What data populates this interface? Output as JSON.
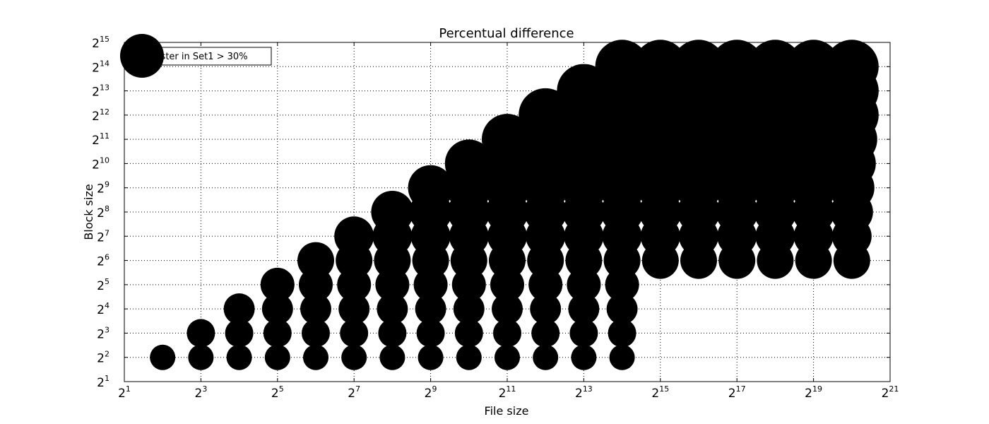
{
  "chart_data": {
    "type": "scatter",
    "title": "Percentual difference",
    "xlabel": "File size",
    "ylabel": "Block size",
    "xscale": "log2",
    "yscale": "log2",
    "xlim_exp": [
      1,
      21
    ],
    "ylim_exp": [
      1,
      15
    ],
    "xtick_exps": [
      1,
      3,
      5,
      7,
      9,
      11,
      13,
      15,
      17,
      19,
      21
    ],
    "ytick_exps": [
      1,
      2,
      3,
      4,
      5,
      6,
      7,
      8,
      9,
      10,
      11,
      12,
      13,
      14,
      15
    ],
    "tick_base": "2",
    "grid": true,
    "legend_position": "top-left",
    "series": [
      {
        "name": "faster in Set1  > 30%",
        "color": "#000000",
        "points_exp": [
          [
            2,
            2
          ],
          [
            3,
            2
          ],
          [
            3,
            3
          ],
          [
            4,
            2
          ],
          [
            4,
            3
          ],
          [
            4,
            4
          ],
          [
            5,
            2
          ],
          [
            5,
            3
          ],
          [
            5,
            4
          ],
          [
            5,
            5
          ],
          [
            6,
            2
          ],
          [
            6,
            3
          ],
          [
            6,
            4
          ],
          [
            6,
            5
          ],
          [
            6,
            6
          ],
          [
            7,
            2
          ],
          [
            7,
            3
          ],
          [
            7,
            4
          ],
          [
            7,
            5
          ],
          [
            7,
            6
          ],
          [
            7,
            7
          ],
          [
            8,
            2
          ],
          [
            8,
            3
          ],
          [
            8,
            4
          ],
          [
            8,
            5
          ],
          [
            8,
            6
          ],
          [
            8,
            7
          ],
          [
            8,
            8
          ],
          [
            9,
            2
          ],
          [
            9,
            3
          ],
          [
            9,
            4
          ],
          [
            9,
            5
          ],
          [
            9,
            6
          ],
          [
            9,
            7
          ],
          [
            9,
            8
          ],
          [
            9,
            9
          ],
          [
            10,
            2
          ],
          [
            10,
            3
          ],
          [
            10,
            4
          ],
          [
            10,
            5
          ],
          [
            10,
            6
          ],
          [
            10,
            7
          ],
          [
            10,
            8
          ],
          [
            10,
            9
          ],
          [
            10,
            10
          ],
          [
            11,
            2
          ],
          [
            11,
            3
          ],
          [
            11,
            4
          ],
          [
            11,
            5
          ],
          [
            11,
            6
          ],
          [
            11,
            7
          ],
          [
            11,
            8
          ],
          [
            11,
            9
          ],
          [
            11,
            10
          ],
          [
            11,
            11
          ],
          [
            12,
            2
          ],
          [
            12,
            3
          ],
          [
            12,
            4
          ],
          [
            12,
            5
          ],
          [
            12,
            6
          ],
          [
            12,
            7
          ],
          [
            12,
            8
          ],
          [
            12,
            9
          ],
          [
            12,
            10
          ],
          [
            12,
            11
          ],
          [
            12,
            12
          ],
          [
            13,
            2
          ],
          [
            13,
            3
          ],
          [
            13,
            4
          ],
          [
            13,
            5
          ],
          [
            13,
            6
          ],
          [
            13,
            7
          ],
          [
            13,
            8
          ],
          [
            13,
            9
          ],
          [
            13,
            10
          ],
          [
            13,
            11
          ],
          [
            13,
            12
          ],
          [
            13,
            13
          ],
          [
            14,
            2
          ],
          [
            14,
            3
          ],
          [
            14,
            4
          ],
          [
            14,
            5
          ],
          [
            14,
            6
          ],
          [
            14,
            7
          ],
          [
            14,
            8
          ],
          [
            14,
            9
          ],
          [
            14,
            10
          ],
          [
            14,
            11
          ],
          [
            14,
            12
          ],
          [
            14,
            13
          ],
          [
            14,
            14
          ],
          [
            15,
            6
          ],
          [
            15,
            7
          ],
          [
            15,
            8
          ],
          [
            15,
            9
          ],
          [
            15,
            10
          ],
          [
            15,
            11
          ],
          [
            15,
            12
          ],
          [
            15,
            13
          ],
          [
            15,
            14
          ],
          [
            16,
            6
          ],
          [
            16,
            7
          ],
          [
            16,
            8
          ],
          [
            16,
            9
          ],
          [
            16,
            10
          ],
          [
            16,
            11
          ],
          [
            16,
            12
          ],
          [
            16,
            13
          ],
          [
            16,
            14
          ],
          [
            17,
            6
          ],
          [
            17,
            7
          ],
          [
            17,
            8
          ],
          [
            17,
            9
          ],
          [
            17,
            10
          ],
          [
            17,
            11
          ],
          [
            17,
            12
          ],
          [
            17,
            13
          ],
          [
            17,
            14
          ],
          [
            18,
            6
          ],
          [
            18,
            7
          ],
          [
            18,
            8
          ],
          [
            18,
            9
          ],
          [
            18,
            10
          ],
          [
            18,
            11
          ],
          [
            18,
            12
          ],
          [
            18,
            13
          ],
          [
            18,
            14
          ],
          [
            19,
            6
          ],
          [
            19,
            7
          ],
          [
            19,
            8
          ],
          [
            19,
            9
          ],
          [
            19,
            10
          ],
          [
            19,
            11
          ],
          [
            19,
            12
          ],
          [
            19,
            13
          ],
          [
            19,
            14
          ],
          [
            20,
            6
          ],
          [
            20,
            7
          ],
          [
            20,
            8
          ],
          [
            20,
            9
          ],
          [
            20,
            10
          ],
          [
            20,
            11
          ],
          [
            20,
            12
          ],
          [
            20,
            13
          ],
          [
            20,
            14
          ]
        ]
      }
    ]
  }
}
